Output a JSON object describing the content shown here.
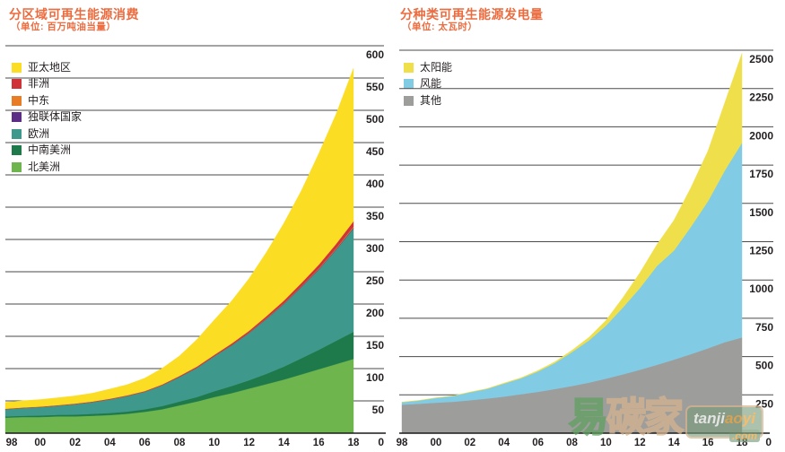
{
  "accent_title_color": "#EC6B3F",
  "grid_color": "#4A4A4A",
  "axis_color": "#1A1A1A",
  "text_color": "#231F20",
  "watermark": {
    "brand_cjk": "易碳家",
    "brand_latin": "tanjiaoyi",
    "domain_suffix": ".com"
  },
  "chart_data": [
    {
      "type": "area",
      "stacked": true,
      "title": "分区域可再生能源消费",
      "subtitle": "（单位: 百万吨油当量）",
      "ylabel_unit": "百万吨油当量",
      "ylim": [
        0,
        600
      ],
      "ytick_step": 50,
      "zero_label": "0",
      "grid": true,
      "legend_position": "top-left, top of stack listed first",
      "x": [
        1998,
        1999,
        2000,
        2001,
        2002,
        2003,
        2004,
        2005,
        2006,
        2007,
        2008,
        2009,
        2010,
        2011,
        2012,
        2013,
        2014,
        2015,
        2016,
        2017,
        2018
      ],
      "x_tick_labels": [
        "98",
        "00",
        "02",
        "04",
        "06",
        "08",
        "10",
        "12",
        "14",
        "16",
        "18"
      ],
      "series": [
        {
          "name": "北美洲",
          "slug": "north-america",
          "color": "#6DB54C",
          "values": [
            24,
            25,
            25,
            26,
            26,
            27,
            28,
            30,
            33,
            37,
            43,
            49,
            56,
            62,
            69,
            76,
            83,
            91,
            99,
            107,
            115
          ]
        },
        {
          "name": "中南美洲",
          "slug": "south-central-america",
          "color": "#1F7A4B",
          "values": [
            2,
            2,
            2.3,
            2.5,
            2.8,
            3,
            3.2,
            3.5,
            4,
            5,
            6,
            7,
            9,
            11,
            13,
            16,
            20,
            25,
            30,
            36,
            42
          ]
        },
        {
          "name": "欧洲",
          "slug": "europe",
          "color": "#3E998C",
          "values": [
            11,
            12,
            13,
            14,
            16,
            18,
            21,
            24,
            27,
            32,
            38,
            45,
            54,
            63,
            73,
            85,
            97,
            110,
            124,
            141,
            160
          ]
        },
        {
          "name": "独联体国家",
          "slug": "cis",
          "color": "#5B2D84",
          "values": [
            0.2,
            0.2,
            0.2,
            0.2,
            0.2,
            0.2,
            0.2,
            0.2,
            0.2,
            0.2,
            0.3,
            0.3,
            0.3,
            0.4,
            0.4,
            0.5,
            0.5,
            0.6,
            0.7,
            0.8,
            1
          ]
        },
        {
          "name": "中东",
          "slug": "middle-east",
          "color": "#E87D25",
          "values": [
            0.05,
            0.05,
            0.05,
            0.05,
            0.1,
            0.1,
            0.1,
            0.1,
            0.1,
            0.1,
            0.1,
            0.2,
            0.2,
            0.3,
            0.4,
            0.5,
            0.7,
            0.9,
            1.2,
            1.5,
            2
          ]
        },
        {
          "name": "非洲",
          "slug": "africa",
          "color": "#CF3339",
          "values": [
            0.5,
            0.5,
            0.6,
            0.6,
            0.7,
            0.7,
            0.8,
            0.8,
            0.9,
            1,
            1.2,
            1.5,
            1.8,
            2.2,
            2.7,
            3.3,
            4,
            4.8,
            5.8,
            6.8,
            8
          ]
        },
        {
          "name": "亚太地区",
          "slug": "asia-pacific",
          "color": "#FBDD23",
          "values": [
            10,
            10.5,
            11,
            11.5,
            12,
            13,
            15,
            16.5,
            20,
            25,
            31,
            42,
            54,
            66,
            81,
            99,
            120,
            143,
            172,
            201,
            237
          ]
        }
      ]
    },
    {
      "type": "area",
      "stacked": true,
      "title": "分种类可再生能源发电量",
      "subtitle": "（单位: 太瓦时）",
      "ylabel_unit": "太瓦时",
      "ylim": [
        0,
        2500
      ],
      "ytick_step": 250,
      "zero_label": "0",
      "grid": true,
      "legend_position": "top-left, top of stack listed first",
      "x": [
        1998,
        1999,
        2000,
        2001,
        2002,
        2003,
        2004,
        2005,
        2006,
        2007,
        2008,
        2009,
        2010,
        2011,
        2012,
        2013,
        2014,
        2015,
        2016,
        2017,
        2018
      ],
      "x_tick_labels": [
        "98",
        "00",
        "02",
        "04",
        "06",
        "08",
        "10",
        "12",
        "14",
        "16",
        "18"
      ],
      "series": [
        {
          "name": "其他",
          "slug": "other",
          "color": "#9D9D9B",
          "values": [
            186,
            192,
            199,
            205,
            215,
            226,
            239,
            254,
            270,
            288,
            308,
            330,
            356,
            384,
            414,
            446,
            480,
            516,
            554,
            594,
            625
          ]
        },
        {
          "name": "风能",
          "slug": "wind",
          "color": "#82CBE4",
          "values": [
            16,
            21,
            31,
            38,
            52,
            63,
            85,
            104,
            133,
            170,
            221,
            276,
            346,
            437,
            534,
            646,
            712,
            831,
            960,
            1122,
            1270
          ]
        },
        {
          "name": "太阳能",
          "slug": "solar",
          "color": "#EFE04B",
          "values": [
            1,
            1,
            1,
            1,
            2,
            2,
            3,
            4,
            6,
            8,
            12,
            20,
            34,
            65,
            100,
            140,
            198,
            256,
            328,
            444,
            585
          ]
        }
      ]
    }
  ]
}
